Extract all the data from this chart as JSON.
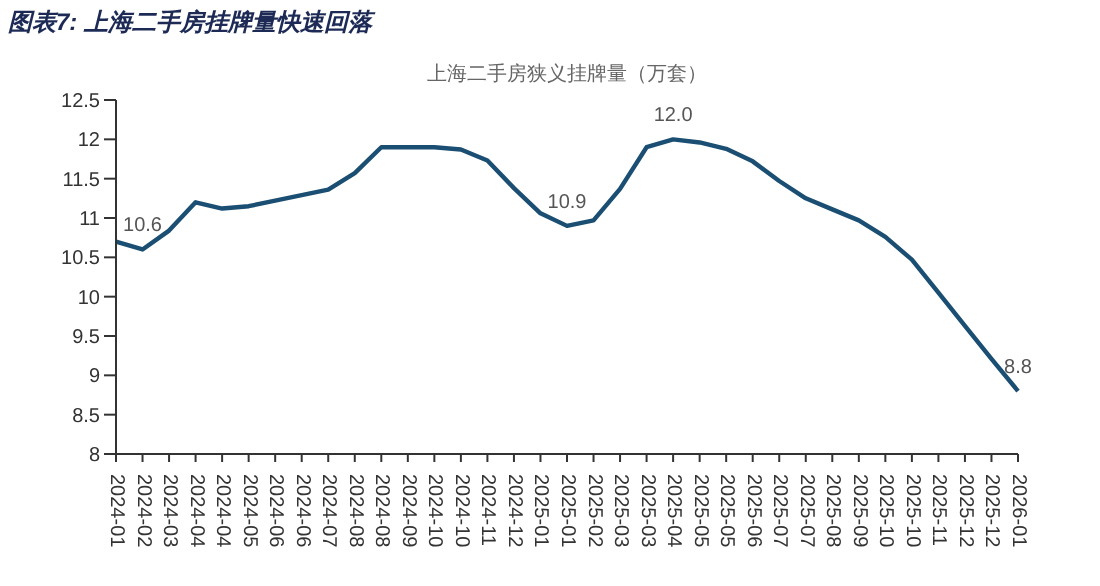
{
  "chart_data": {
    "type": "line",
    "title": "图表7: 上海二手房挂牌量快速回落",
    "subtitle": "上海二手房狭义挂牌量（万套）",
    "categories": [
      "2024-01",
      "2024-02",
      "2024-03",
      "2024-04",
      "2024-04",
      "2024-05",
      "2024-06",
      "2024-06",
      "2024-07",
      "2024-08",
      "2024-08",
      "2024-09",
      "2024-10",
      "2024-10",
      "2024-11",
      "2024-12",
      "2025-01",
      "2025-01",
      "2025-02",
      "2025-03",
      "2025-03",
      "2025-04",
      "2025-05",
      "2025-05",
      "2025-06",
      "2025-07",
      "2025-07",
      "2025-08",
      "2025-09",
      "2025-10",
      "2025-10",
      "2025-11",
      "2025-12",
      "2025-12",
      "2026-01"
    ],
    "series": [
      {
        "color": "#1a4e73",
        "values": [
          10.7,
          10.6,
          10.84,
          11.2,
          11.12,
          11.15,
          11.22,
          11.29,
          11.36,
          11.57,
          11.9,
          11.9,
          11.9,
          11.87,
          11.73,
          11.38,
          11.06,
          10.9,
          10.97,
          11.37,
          11.9,
          12.0,
          11.96,
          11.88,
          11.72,
          11.47,
          11.25,
          11.11,
          10.97,
          10.76,
          10.47,
          10.05,
          9.63,
          9.21,
          8.8
        ],
        "value_labels": [
          null,
          "10.6",
          null,
          null,
          null,
          null,
          null,
          null,
          null,
          null,
          null,
          null,
          null,
          null,
          null,
          null,
          null,
          "10.9",
          null,
          null,
          null,
          "12.0",
          null,
          null,
          null,
          null,
          null,
          null,
          null,
          null,
          null,
          null,
          null,
          null,
          "8.8"
        ]
      }
    ],
    "ylim": [
      8,
      12.5
    ],
    "yticks": [
      8,
      8.5,
      9,
      9.5,
      10,
      10.5,
      11,
      11.5,
      12,
      12.5
    ],
    "grid": false,
    "legend": false,
    "marker": "none",
    "line_style": "solid"
  }
}
